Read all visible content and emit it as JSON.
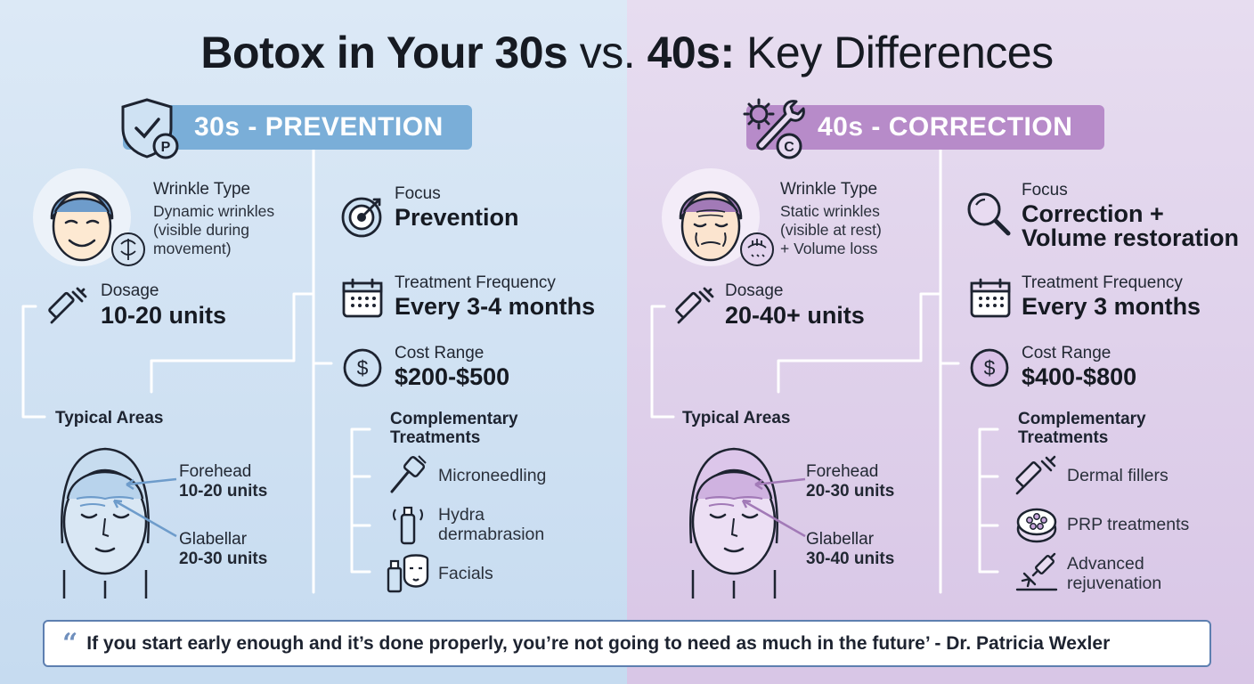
{
  "title": {
    "part1": "Botox in Your 30s",
    "part2": "vs.",
    "part3": "40s:",
    "part4": "Key Differences"
  },
  "sections": {
    "s30": {
      "banner": "30s - PREVENTION",
      "badge": "P",
      "wrinkle_label": "Wrinkle Type",
      "wrinkle_desc": [
        "Dynamic wrinkles",
        "(visible during",
        "movement)"
      ],
      "dosage_label": "Dosage",
      "dosage_value": "10-20 units",
      "areas_label": "Typical Areas",
      "forehead_label": "Forehead",
      "forehead_units": "10-20 units",
      "glabellar_label": "Glabellar",
      "glabellar_units": "20-30 units",
      "focus_label": "Focus",
      "focus_value": "Prevention",
      "freq_label": "Treatment Frequency",
      "freq_value": "Every 3-4 months",
      "cost_label": "Cost Range",
      "cost_value": "$200-$500",
      "comp_label": [
        "Complementary",
        "Treatments"
      ],
      "treatments": [
        [
          "Microneedling"
        ],
        [
          "Hydra",
          "dermabrasion"
        ],
        [
          "Facials"
        ]
      ],
      "accent": "#7aaed8"
    },
    "s40": {
      "banner": "40s - CORRECTION",
      "badge": "C",
      "wrinkle_label": "Wrinkle Type",
      "wrinkle_desc": [
        "Static wrinkles",
        "(visible at rest)",
        "+ Volume loss"
      ],
      "dosage_label": "Dosage",
      "dosage_value": "20-40+ units",
      "areas_label": "Typical Areas",
      "forehead_label": "Forehead",
      "forehead_units": "20-30 units",
      "glabellar_label": "Glabellar",
      "glabellar_units": "30-40 units",
      "focus_label": "Focus",
      "focus_value": [
        "Correction +",
        "Volume restoration"
      ],
      "freq_label": "Treatment Frequency",
      "freq_value": "Every 3 months",
      "cost_label": "Cost Range",
      "cost_value": "$400-$800",
      "comp_label": [
        "Complementary",
        "Treatments"
      ],
      "treatments": [
        [
          "Dermal fillers"
        ],
        [
          "PRP treatments"
        ],
        [
          "Advanced",
          "rejuvenation"
        ]
      ],
      "accent": "#b78bc9"
    }
  },
  "quote": {
    "mark": "“",
    "text": "If you start early enough and it’s done properly, you’re not going to need as much in the future’ - Dr. Patricia Wexler"
  }
}
